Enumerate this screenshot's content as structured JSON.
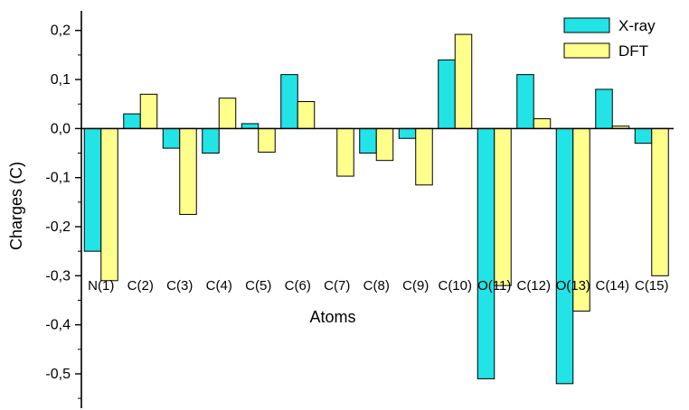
{
  "chart_data": {
    "type": "bar",
    "ylabel": "Charges (C)",
    "xlabel": "Atoms",
    "ylim": [
      -0.57,
      0.24
    ],
    "yticks": [
      -0.5,
      -0.4,
      -0.3,
      -0.2,
      -0.1,
      0.0,
      0.1,
      0.2
    ],
    "ytick_labels": [
      "-0,5",
      "-0,4",
      "-0,3",
      "-0,2",
      "-0,1",
      "0,0",
      "0,1",
      "0,2"
    ],
    "categories": [
      "N(1)",
      "C(2)",
      "C(3)",
      "C(4)",
      "C(5)",
      "C(6)",
      "C(7)",
      "C(8)",
      "C(9)",
      "C(10)",
      "O(11)",
      "C(12)",
      "O(13)",
      "C(14)",
      "C(15)"
    ],
    "series": [
      {
        "name": "X-ray",
        "color": "#22e3e6",
        "values": [
          -0.25,
          0.03,
          -0.04,
          -0.05,
          0.01,
          0.11,
          0.0,
          -0.05,
          -0.02,
          0.14,
          -0.51,
          0.11,
          -0.52,
          0.08,
          -0.03
        ]
      },
      {
        "name": "DFT",
        "color": "#ffff8c",
        "values": [
          -0.31,
          0.07,
          -0.175,
          0.062,
          -0.048,
          0.055,
          -0.097,
          -0.065,
          -0.115,
          0.192,
          -0.32,
          0.02,
          -0.372,
          0.005,
          -0.3
        ]
      }
    ],
    "legend_position": "top-right",
    "grid": false
  }
}
